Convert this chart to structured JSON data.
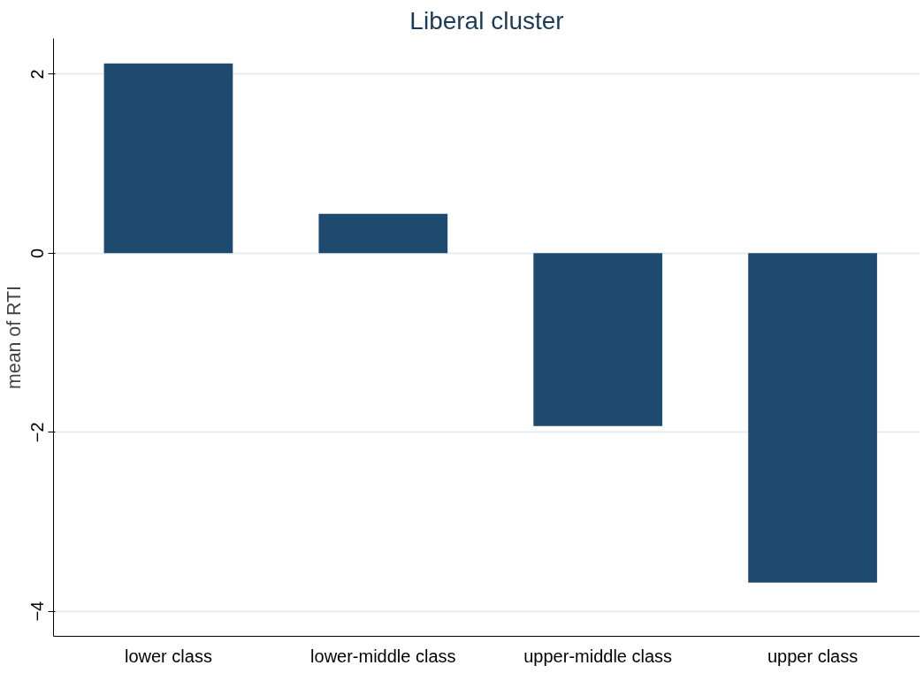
{
  "chart_data": {
    "type": "bar",
    "title": "Liberal cluster",
    "ylabel": "mean of RTI",
    "categories": [
      "lower class",
      "lower-middle class",
      "upper-middle class",
      "upper class"
    ],
    "values": [
      2.12,
      0.44,
      -1.93,
      -3.68
    ],
    "color": "#1f4a70",
    "ylim": [
      -4.28,
      2.4
    ],
    "yticks": [
      -4,
      -2,
      0,
      2
    ],
    "grid": "y"
  }
}
